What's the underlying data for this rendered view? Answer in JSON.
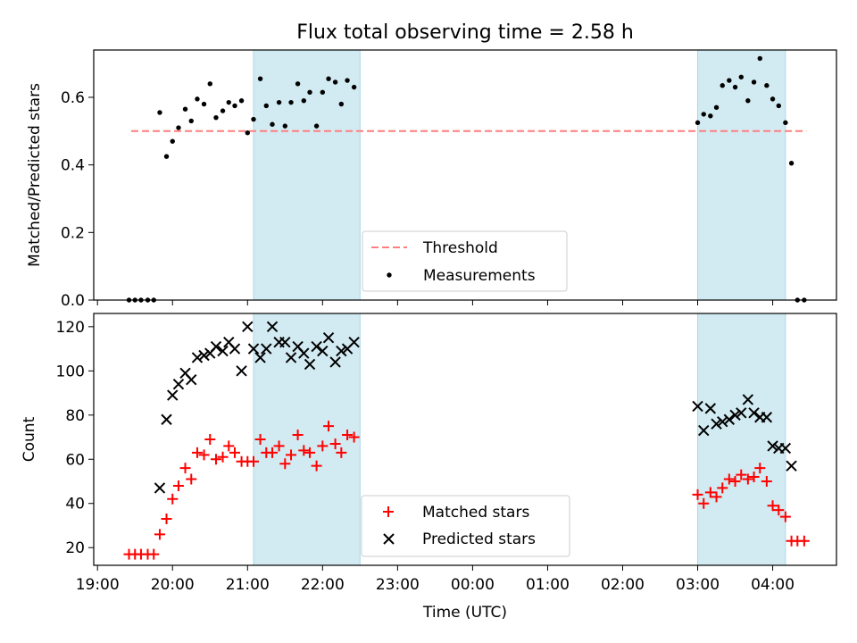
{
  "title": "Flux total observing time = 2.58 h",
  "colors": {
    "threshold": "#ff7f7f",
    "measurements": "#000000",
    "matched": "#ff0000",
    "predicted": "#000000",
    "shade": "#add8e6"
  },
  "chart_data": [
    {
      "type": "scatter",
      "panel": "top",
      "ylabel": "Matched/Predicted stars",
      "ylim": [
        0,
        0.74
      ],
      "yticks": [
        "0.0",
        "0.2",
        "0.4",
        "0.6"
      ],
      "x_unit": "hours after 19:00 UTC",
      "xlim": [
        -0.05,
        9.85
      ],
      "threshold": {
        "name": "Threshold",
        "y": 0.5,
        "x_range": [
          0.45,
          9.45
        ]
      },
      "shaded_intervals": [
        [
          2.08,
          3.5
        ],
        [
          8.0,
          9.17
        ]
      ],
      "legend": {
        "placement": "lower center",
        "entries": [
          "Threshold",
          "Measurements"
        ]
      },
      "series": [
        {
          "name": "Measurements",
          "marker": "dot",
          "x": [
            0.42,
            0.5,
            0.58,
            0.67,
            0.75,
            0.83,
            0.92,
            1.0,
            1.08,
            1.17,
            1.25,
            1.33,
            1.42,
            1.5,
            1.58,
            1.67,
            1.75,
            1.83,
            1.92,
            2.0,
            2.08,
            2.17,
            2.25,
            2.33,
            2.42,
            2.5,
            2.58,
            2.67,
            2.75,
            2.83,
            2.92,
            3.0,
            3.08,
            3.17,
            3.25,
            3.33,
            3.42,
            8.0,
            8.08,
            8.17,
            8.25,
            8.33,
            8.42,
            8.5,
            8.58,
            8.67,
            8.75,
            8.83,
            8.92,
            9.0,
            9.08,
            9.17,
            9.25,
            9.33,
            9.42
          ],
          "y": [
            0,
            0,
            0,
            0,
            0,
            0.555,
            0.425,
            0.47,
            0.51,
            0.565,
            0.53,
            0.595,
            0.58,
            0.64,
            0.54,
            0.56,
            0.585,
            0.575,
            0.59,
            0.495,
            0.535,
            0.655,
            0.575,
            0.52,
            0.585,
            0.515,
            0.585,
            0.64,
            0.59,
            0.615,
            0.515,
            0.615,
            0.655,
            0.645,
            0.58,
            0.65,
            0.63,
            0.525,
            0.55,
            0.545,
            0.57,
            0.635,
            0.65,
            0.63,
            0.66,
            0.59,
            0.645,
            0.715,
            0.635,
            0.595,
            0.575,
            0.525,
            0.405,
            0,
            0
          ]
        }
      ]
    },
    {
      "type": "scatter",
      "panel": "bottom",
      "xlabel": "Time (UTC)",
      "ylabel": "Count",
      "ylim": [
        12,
        126
      ],
      "yticks": [
        "20",
        "40",
        "60",
        "80",
        "100",
        "120"
      ],
      "x_unit": "hours after 19:00 UTC",
      "xlim": [
        -0.05,
        9.85
      ],
      "xticks": [
        "19:00",
        "20:00",
        "21:00",
        "22:00",
        "23:00",
        "00:00",
        "01:00",
        "02:00",
        "03:00",
        "04:00"
      ],
      "shaded_intervals": [
        [
          2.08,
          3.5
        ],
        [
          8.0,
          9.17
        ]
      ],
      "legend": {
        "placement": "lower center",
        "entries": [
          "Matched stars",
          "Predicted stars"
        ]
      },
      "series": [
        {
          "name": "Matched stars",
          "marker": "plus",
          "x": [
            0.42,
            0.5,
            0.58,
            0.67,
            0.75,
            0.83,
            0.92,
            1.0,
            1.08,
            1.17,
            1.25,
            1.33,
            1.42,
            1.5,
            1.58,
            1.67,
            1.75,
            1.83,
            1.92,
            2.0,
            2.08,
            2.17,
            2.25,
            2.33,
            2.42,
            2.5,
            2.58,
            2.67,
            2.75,
            2.83,
            2.92,
            3.0,
            3.08,
            3.17,
            3.25,
            3.33,
            3.42,
            8.0,
            8.08,
            8.17,
            8.25,
            8.33,
            8.42,
            8.5,
            8.58,
            8.67,
            8.75,
            8.83,
            8.92,
            9.0,
            9.08,
            9.17,
            9.25,
            9.33,
            9.42
          ],
          "y": [
            17,
            17,
            17,
            17,
            17,
            26,
            33,
            42,
            48,
            56,
            51,
            63,
            62,
            69,
            60,
            61,
            66,
            63,
            59,
            59,
            59,
            69,
            63,
            63,
            66,
            58,
            62,
            71,
            64,
            63,
            57,
            66,
            75,
            67,
            63,
            71,
            70,
            44,
            40,
            45,
            43,
            47,
            51,
            50,
            53,
            51,
            52,
            56,
            50,
            39,
            37,
            34,
            23,
            23,
            23
          ]
        },
        {
          "name": "Predicted stars",
          "marker": "x",
          "x": [
            0.83,
            0.92,
            1.0,
            1.08,
            1.17,
            1.25,
            1.33,
            1.42,
            1.5,
            1.58,
            1.67,
            1.75,
            1.83,
            1.92,
            2.0,
            2.08,
            2.17,
            2.25,
            2.33,
            2.42,
            2.5,
            2.58,
            2.67,
            2.75,
            2.83,
            2.92,
            3.0,
            3.08,
            3.17,
            3.25,
            3.33,
            3.42,
            8.0,
            8.08,
            8.17,
            8.25,
            8.33,
            8.42,
            8.5,
            8.58,
            8.67,
            8.75,
            8.83,
            8.92,
            9.0,
            9.08,
            9.17,
            9.25
          ],
          "y": [
            47,
            78,
            89,
            94,
            99,
            96,
            106,
            107,
            108,
            111,
            109,
            113,
            110,
            100,
            120,
            110,
            106,
            110,
            120,
            113,
            113,
            106,
            111,
            108,
            103,
            111,
            109,
            115,
            104,
            109,
            110,
            113,
            84,
            73,
            83,
            76,
            77,
            78,
            80,
            81,
            87,
            81,
            79,
            79,
            66,
            65,
            65,
            57
          ]
        }
      ]
    }
  ]
}
